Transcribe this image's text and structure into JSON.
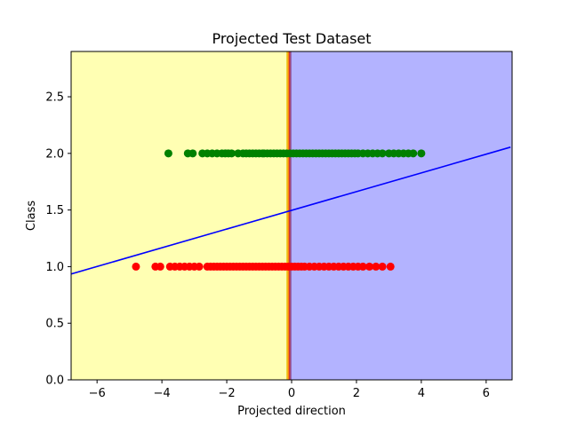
{
  "chart_data": {
    "type": "scatter",
    "title": "Projected Test Dataset",
    "xlabel": "Projected direction",
    "ylabel": "Class",
    "xlim": [
      -6.8,
      6.8
    ],
    "ylim": [
      0.0,
      2.9
    ],
    "xticks": [
      -6,
      -4,
      -2,
      0,
      2,
      4,
      6
    ],
    "xtick_labels": [
      "−6",
      "−4",
      "−2",
      "0",
      "2",
      "4",
      "6"
    ],
    "yticks": [
      0.0,
      0.5,
      1.0,
      1.5,
      2.0,
      2.5
    ],
    "ytick_labels": [
      "0.0",
      "0.5",
      "1.0",
      "1.5",
      "2.0",
      "2.5"
    ],
    "grid": false,
    "regions": [
      {
        "x_from": -6.8,
        "x_to": -0.08,
        "color": "#ffffb3"
      },
      {
        "x_from": -0.08,
        "x_to": 6.8,
        "color": "#b3b3ff"
      }
    ],
    "boundary_x": -0.08,
    "boundary_colors": [
      "#e6c200",
      "#ff7f0e",
      "#c03030",
      "#8f5fb0"
    ],
    "series": [
      {
        "color": "#008000",
        "y": 2.0,
        "x": [
          -3.8,
          -3.2,
          -3.05,
          -2.75,
          -2.6,
          -2.45,
          -2.3,
          -2.15,
          -2.05,
          -1.95,
          -1.85,
          -1.65,
          -1.5,
          -1.4,
          -1.3,
          -1.2,
          -1.1,
          -1.0,
          -0.9,
          -0.85,
          -0.75,
          -0.65,
          -0.55,
          -0.45,
          -0.35,
          -0.25,
          -0.15,
          -0.05,
          0.05,
          0.15,
          0.25,
          0.35,
          0.45,
          0.55,
          0.65,
          0.75,
          0.85,
          0.95,
          1.05,
          1.15,
          1.25,
          1.35,
          1.45,
          1.55,
          1.65,
          1.75,
          1.85,
          1.95,
          2.05,
          2.2,
          2.35,
          2.5,
          2.65,
          2.8,
          3.0,
          3.15,
          3.3,
          3.45,
          3.6,
          3.75,
          4.0
        ]
      },
      {
        "color": "#ff0000",
        "y": 1.0,
        "x": [
          -4.8,
          -4.2,
          -4.05,
          -3.75,
          -3.6,
          -3.45,
          -3.3,
          -3.15,
          -3.0,
          -2.85,
          -2.6,
          -2.5,
          -2.4,
          -2.3,
          -2.2,
          -2.1,
          -2.0,
          -1.9,
          -1.8,
          -1.7,
          -1.6,
          -1.5,
          -1.4,
          -1.3,
          -1.2,
          -1.1,
          -1.0,
          -0.9,
          -0.8,
          -0.7,
          -0.6,
          -0.5,
          -0.4,
          -0.3,
          -0.2,
          -0.1,
          0.0,
          0.1,
          0.2,
          0.3,
          0.4,
          0.55,
          0.7,
          0.85,
          1.0,
          1.15,
          1.3,
          1.45,
          1.6,
          1.75,
          1.9,
          2.05,
          2.2,
          2.4,
          2.6,
          2.8,
          3.05
        ]
      }
    ],
    "line": {
      "color": "#0000ff",
      "points": [
        [
          -6.8,
          0.935
        ],
        [
          6.75,
          2.055
        ]
      ]
    }
  }
}
